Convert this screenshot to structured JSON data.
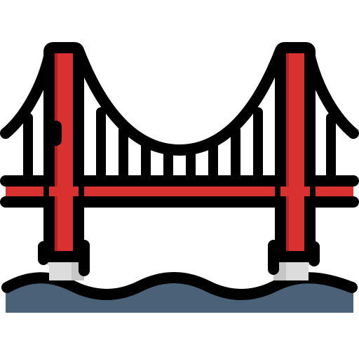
{
  "icon": {
    "name": "golden-gate-bridge-icon",
    "colors": {
      "outline": "#000000",
      "tower_red": "#d93030",
      "tower_shade": "#b62222",
      "deck_red": "#d93030",
      "pier_gray": "#dcdcdc",
      "pier_shade": "#c6c6c6",
      "water": "#4a6178",
      "background": "#ffffff"
    },
    "elements": [
      "left-tower",
      "right-tower",
      "main-cable",
      "suspender-cables",
      "road-deck",
      "left-pier",
      "right-pier",
      "water-waves"
    ]
  }
}
